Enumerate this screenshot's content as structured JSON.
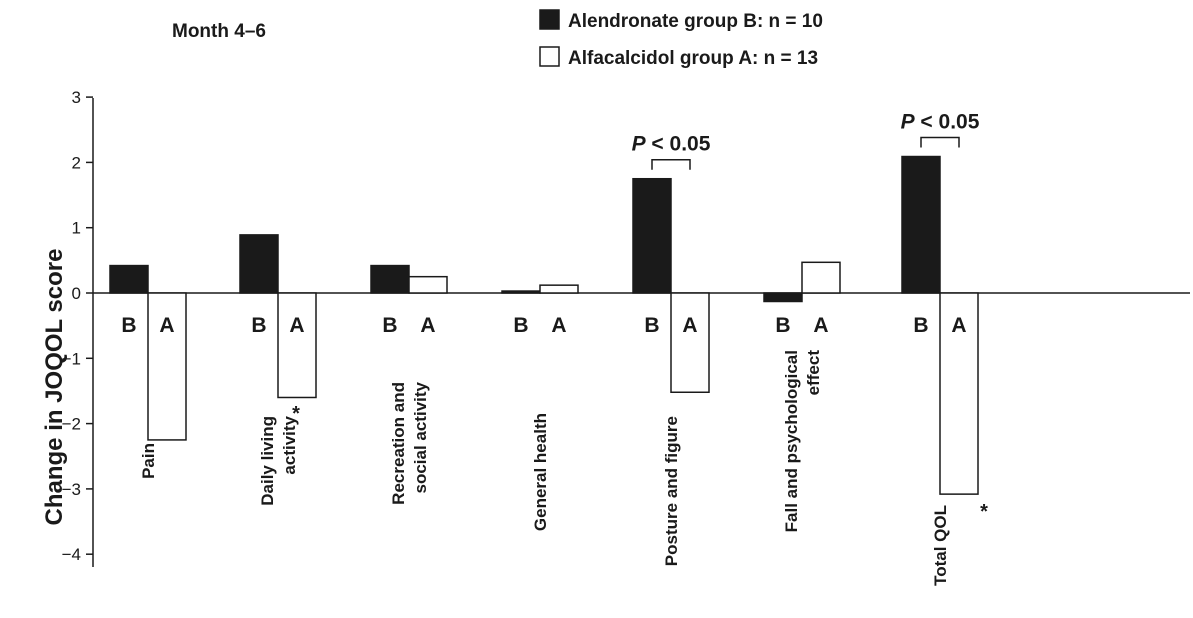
{
  "chart_data": {
    "type": "bar",
    "subtitle": "Month 4–6",
    "ylabel": "Change in JOQOL score",
    "xlabel": "",
    "ylim": [
      -4,
      3
    ],
    "yticks": [
      3,
      2,
      1,
      0,
      -1,
      -2,
      -3,
      -4
    ],
    "ytick_labels": [
      "3",
      "2",
      "1",
      "0",
      "−1",
      "−2",
      "−3",
      "−4"
    ],
    "categories": [
      [
        "Pain"
      ],
      [
        "Daily living",
        "activity"
      ],
      [
        "Recreation and",
        "social activity"
      ],
      [
        "General health"
      ],
      [
        "Posture and figure"
      ],
      [
        "Fall and psychological",
        "effect"
      ],
      [
        "Total QOL"
      ]
    ],
    "series": [
      {
        "name": "Alendronate group B: n = 10",
        "group_label": "B",
        "fill": "#1a1a1a",
        "values": [
          0.42,
          0.89,
          0.42,
          0.03,
          1.75,
          -0.13,
          2.09
        ]
      },
      {
        "name": "Alfacalcidol group A: n = 13",
        "group_label": "A",
        "fill": "#ffffff",
        "values": [
          -2.25,
          -1.6,
          0.25,
          0.12,
          -1.52,
          0.47,
          -3.08
        ]
      }
    ],
    "annotations": {
      "significance": [
        {
          "category_index": 4,
          "text_italic": "P",
          "text_rest": " < 0.05"
        },
        {
          "category_index": 6,
          "text_italic": "P",
          "text_rest": " < 0.05"
        }
      ],
      "asterisk": "*",
      "asterisk_categories": [
        1,
        6
      ]
    },
    "legend": "top-right",
    "grid": false
  }
}
